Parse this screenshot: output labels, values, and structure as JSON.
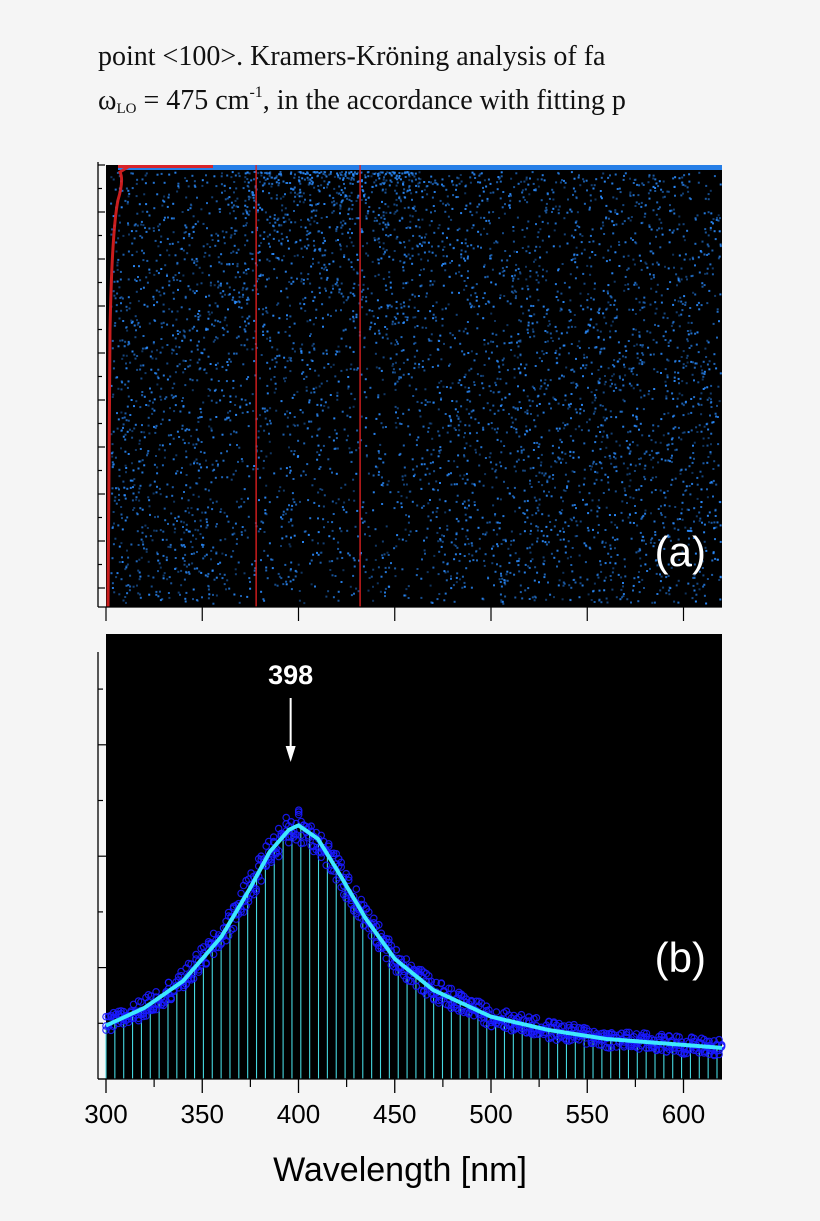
{
  "paragraph": {
    "line1": "point <100>. Kramers-Kröning analysis of fa",
    "line2_omega": "ω",
    "line2_sub": "LO",
    "line2_eq": " = 475 cm",
    "line2_sup": "-1",
    "line2_rest": ", in the accordance with fitting p"
  },
  "colors": {
    "panel_bg": "#000000",
    "scatter_blue": "#2a8cff",
    "red_lines": "#e02020",
    "fit_curve": "#3ee8ff",
    "data_blue": "#1a1aff",
    "stick_cyan": "#46d8e0",
    "page_bg": "#f5f5f5"
  },
  "chart_data": [
    {
      "panel": "a",
      "type": "scatter",
      "label": "(a)",
      "xlim": [
        300,
        620
      ],
      "vertical_red_lines_x": [
        301,
        378,
        432
      ],
      "description_colors": [
        "blue points",
        "red lines"
      ]
    },
    {
      "panel": "b",
      "type": "line",
      "label": "(b)",
      "xlabel": "Wavelength [nm]",
      "xlim": [
        300,
        620
      ],
      "xticks": [
        300,
        350,
        400,
        450,
        500,
        550,
        600
      ],
      "xtick_labels": [
        "300",
        "350",
        "400",
        "450",
        "500",
        "550",
        "600"
      ],
      "annotation": {
        "text": "398",
        "x": 398
      },
      "series": [
        {
          "kind": "fit",
          "x": [
            300,
            320,
            340,
            360,
            375,
            385,
            395,
            400,
            410,
            420,
            435,
            450,
            470,
            500,
            530,
            560,
            590,
            620
          ],
          "y": [
            0.12,
            0.16,
            0.22,
            0.32,
            0.43,
            0.51,
            0.56,
            0.57,
            0.54,
            0.47,
            0.36,
            0.27,
            0.2,
            0.14,
            0.11,
            0.09,
            0.08,
            0.07
          ]
        }
      ]
    }
  ]
}
